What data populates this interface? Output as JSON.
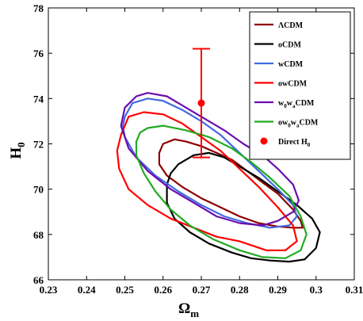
{
  "chart_data": {
    "type": "scatter",
    "xlabel": "Ω",
    "xlabel_sub": "m",
    "ylabel": "H",
    "ylabel_sub": "0",
    "xlim": [
      0.23,
      0.31
    ],
    "ylim": [
      66,
      78
    ],
    "xticks": [
      0.23,
      0.24,
      0.25,
      0.26,
      0.27,
      0.28,
      0.29,
      0.3,
      0.31
    ],
    "xtick_labels": [
      "0.23",
      "0.24",
      "0.25",
      "0.26",
      "0.27",
      "0.28",
      "0.29",
      "0.3",
      "0.31"
    ],
    "yticks": [
      66,
      68,
      70,
      72,
      74,
      76,
      78
    ],
    "ytick_labels": [
      "66",
      "68",
      "70",
      "72",
      "74",
      "76",
      "78"
    ],
    "grid": false,
    "legend_position": "top-right",
    "series": [
      {
        "name": "ΛCDM",
        "color": "#8b0000",
        "contour": [
          [
            0.263,
            72.2
          ],
          [
            0.266,
            72.1
          ],
          [
            0.27,
            71.9
          ],
          [
            0.274,
            71.6
          ],
          [
            0.278,
            71.3
          ],
          [
            0.282,
            70.8
          ],
          [
            0.286,
            70.3
          ],
          [
            0.29,
            69.8
          ],
          [
            0.294,
            69.1
          ],
          [
            0.296,
            68.6
          ],
          [
            0.2965,
            68.3
          ],
          [
            0.294,
            68.3
          ],
          [
            0.29,
            68.35
          ],
          [
            0.285,
            68.5
          ],
          [
            0.28,
            68.8
          ],
          [
            0.275,
            69.2
          ],
          [
            0.27,
            69.6
          ],
          [
            0.265,
            70.1
          ],
          [
            0.261,
            70.6
          ],
          [
            0.259,
            71.1
          ],
          [
            0.259,
            71.6
          ],
          [
            0.26,
            72.0
          ],
          [
            0.263,
            72.2
          ]
        ]
      },
      {
        "name": "oCDM",
        "color": "#000000",
        "contour": [
          [
            0.264,
            71.1
          ],
          [
            0.268,
            71.5
          ],
          [
            0.272,
            71.6
          ],
          [
            0.276,
            71.4
          ],
          [
            0.28,
            71.0
          ],
          [
            0.285,
            70.5
          ],
          [
            0.29,
            69.9
          ],
          [
            0.295,
            69.3
          ],
          [
            0.299,
            68.7
          ],
          [
            0.301,
            68.1
          ],
          [
            0.3,
            67.4
          ],
          [
            0.297,
            66.9
          ],
          [
            0.293,
            66.8
          ],
          [
            0.288,
            66.85
          ],
          [
            0.283,
            66.95
          ],
          [
            0.278,
            67.2
          ],
          [
            0.272,
            67.6
          ],
          [
            0.267,
            68.1
          ],
          [
            0.263,
            68.7
          ],
          [
            0.261,
            69.4
          ],
          [
            0.261,
            70.2
          ],
          [
            0.262,
            70.7
          ],
          [
            0.264,
            71.1
          ]
        ]
      },
      {
        "name": "wCDM",
        "color": "#4169e1",
        "contour": [
          [
            0.25,
            73.2
          ],
          [
            0.252,
            73.8
          ],
          [
            0.256,
            74.0
          ],
          [
            0.26,
            73.9
          ],
          [
            0.265,
            73.5
          ],
          [
            0.27,
            73.0
          ],
          [
            0.275,
            72.4
          ],
          [
            0.28,
            71.6
          ],
          [
            0.285,
            70.8
          ],
          [
            0.29,
            70.0
          ],
          [
            0.294,
            69.3
          ],
          [
            0.295,
            68.8
          ],
          [
            0.293,
            68.4
          ],
          [
            0.288,
            68.3
          ],
          [
            0.282,
            68.5
          ],
          [
            0.276,
            68.8
          ],
          [
            0.27,
            69.3
          ],
          [
            0.264,
            69.9
          ],
          [
            0.258,
            70.6
          ],
          [
            0.253,
            71.4
          ],
          [
            0.25,
            72.3
          ],
          [
            0.2495,
            72.8
          ],
          [
            0.25,
            73.2
          ]
        ]
      },
      {
        "name": "owCDM",
        "color": "#ff0000",
        "contour": [
          [
            0.249,
            72.4
          ],
          [
            0.251,
            73.2
          ],
          [
            0.255,
            73.4
          ],
          [
            0.26,
            73.3
          ],
          [
            0.265,
            72.9
          ],
          [
            0.27,
            72.3
          ],
          [
            0.275,
            71.7
          ],
          [
            0.28,
            70.9
          ],
          [
            0.285,
            70.1
          ],
          [
            0.29,
            69.2
          ],
          [
            0.294,
            68.4
          ],
          [
            0.295,
            67.7
          ],
          [
            0.292,
            67.3
          ],
          [
            0.287,
            67.3
          ],
          [
            0.28,
            67.7
          ],
          [
            0.274,
            67.9
          ],
          [
            0.268,
            68.3
          ],
          [
            0.262,
            68.7
          ],
          [
            0.256,
            69.3
          ],
          [
            0.251,
            70.0
          ],
          [
            0.2485,
            70.9
          ],
          [
            0.248,
            71.7
          ],
          [
            0.249,
            72.4
          ]
        ]
      },
      {
        "name": "w0waCDM",
        "color": "#6a0dad",
        "contour": [
          [
            0.25,
            73.6
          ],
          [
            0.253,
            74.1
          ],
          [
            0.256,
            74.25
          ],
          [
            0.261,
            74.1
          ],
          [
            0.266,
            73.6
          ],
          [
            0.271,
            73.1
          ],
          [
            0.276,
            72.6
          ],
          [
            0.281,
            72.0
          ],
          [
            0.286,
            71.5
          ],
          [
            0.29,
            70.9
          ],
          [
            0.294,
            70.2
          ],
          [
            0.2955,
            69.5
          ],
          [
            0.294,
            69.0
          ],
          [
            0.29,
            68.6
          ],
          [
            0.286,
            68.4
          ],
          [
            0.28,
            68.5
          ],
          [
            0.274,
            68.8
          ],
          [
            0.268,
            69.4
          ],
          [
            0.262,
            70.0
          ],
          [
            0.256,
            70.8
          ],
          [
            0.251,
            71.8
          ],
          [
            0.249,
            72.8
          ],
          [
            0.25,
            73.6
          ]
        ]
      },
      {
        "name": "ow0waCDM",
        "color": "#22aa22",
        "contour": [
          [
            0.256,
            72.7
          ],
          [
            0.26,
            72.8
          ],
          [
            0.266,
            72.6
          ],
          [
            0.272,
            72.3
          ],
          [
            0.278,
            71.8
          ],
          [
            0.283,
            71.2
          ],
          [
            0.288,
            70.5
          ],
          [
            0.293,
            69.7
          ],
          [
            0.296,
            68.8
          ],
          [
            0.2975,
            68.0
          ],
          [
            0.296,
            67.3
          ],
          [
            0.292,
            66.95
          ],
          [
            0.286,
            67.0
          ],
          [
            0.28,
            67.3
          ],
          [
            0.273,
            67.8
          ],
          [
            0.267,
            68.4
          ],
          [
            0.262,
            69.1
          ],
          [
            0.258,
            69.9
          ],
          [
            0.255,
            70.7
          ],
          [
            0.253,
            71.5
          ],
          [
            0.253,
            72.1
          ],
          [
            0.254,
            72.5
          ],
          [
            0.256,
            72.7
          ]
        ]
      }
    ],
    "direct": {
      "name": "Direct H₀",
      "color": "#ff0000",
      "x": 0.27,
      "y": 73.8,
      "yerr_low": 71.4,
      "yerr_high": 76.2
    },
    "legend": [
      {
        "main": "ΛCDM",
        "parts": [
          [
            "ΛCDM",
            false
          ]
        ]
      },
      {
        "main": "oCDM",
        "parts": [
          [
            "oCDM",
            false
          ]
        ]
      },
      {
        "main": "wCDM",
        "parts": [
          [
            "wCDM",
            false
          ]
        ]
      },
      {
        "main": "owCDM",
        "parts": [
          [
            "owCDM",
            false
          ]
        ]
      },
      {
        "main": "w0waCDM",
        "parts": [
          [
            "w",
            false
          ],
          [
            "0",
            true
          ],
          [
            "w",
            false
          ],
          [
            "a",
            true
          ],
          [
            "CDM",
            false
          ]
        ]
      },
      {
        "main": "ow0waCDM",
        "parts": [
          [
            "ow",
            false
          ],
          [
            "0",
            true
          ],
          [
            "w",
            false
          ],
          [
            "a",
            true
          ],
          [
            "CDM",
            false
          ]
        ]
      },
      {
        "main": "Direct H0",
        "parts": [
          [
            "Direct H",
            false
          ],
          [
            "0",
            true
          ]
        ]
      }
    ]
  }
}
